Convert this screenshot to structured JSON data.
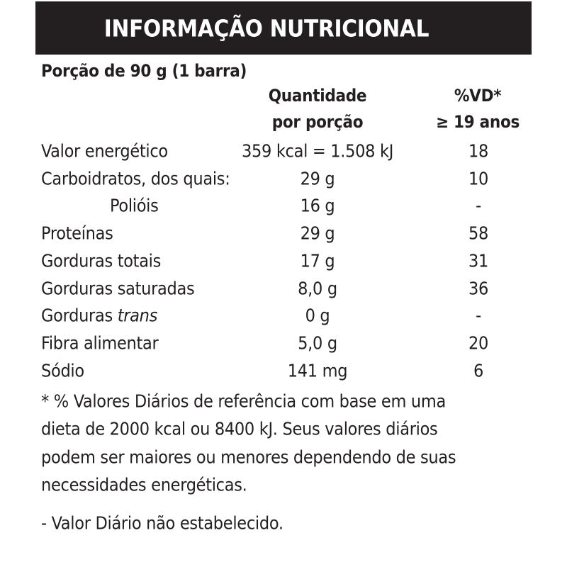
{
  "header": {
    "title": "INFORMAÇÃO NUTRICIONAL"
  },
  "serving": "Porção de 90 g (1 barra)",
  "columns": {
    "amount": [
      "Quantidade",
      "por porção"
    ],
    "dv": [
      "%VD*",
      "≥ 19 anos"
    ]
  },
  "table": {
    "rows": [
      {
        "label": "Valor energético",
        "amount": "359 kcal = 1.508 kJ",
        "dv": "18"
      },
      {
        "label": "Carboidratos, dos quais:",
        "amount": "29 g",
        "dv": "10"
      },
      {
        "label": "Polióis",
        "amount": "16 g",
        "dv": "-",
        "indent": true
      },
      {
        "label": "Proteínas",
        "amount": "29 g",
        "dv": "58"
      },
      {
        "label": "Gorduras totais",
        "amount": "17 g",
        "dv": "31"
      },
      {
        "label": "Gorduras saturadas",
        "amount": "8,0 g",
        "dv": "36"
      },
      {
        "label": "Gorduras",
        "label_italic": "trans",
        "amount": "0 g",
        "dv": "-"
      },
      {
        "label": "Fibra alimentar",
        "amount": "5,0 g",
        "dv": "20"
      },
      {
        "label": "Sódio",
        "amount": "141 mg",
        "dv": "6"
      }
    ]
  },
  "footnote": {
    "lines": [
      "* % Valores Diários de referência com base em uma",
      "dieta de 2000 kcal ou 8400 kJ. Seus valores diários",
      "podem ser maiores ou menores dependendo de suas",
      "necessidades energéticas."
    ],
    "note": "- Valor Diário não estabelecido."
  }
}
